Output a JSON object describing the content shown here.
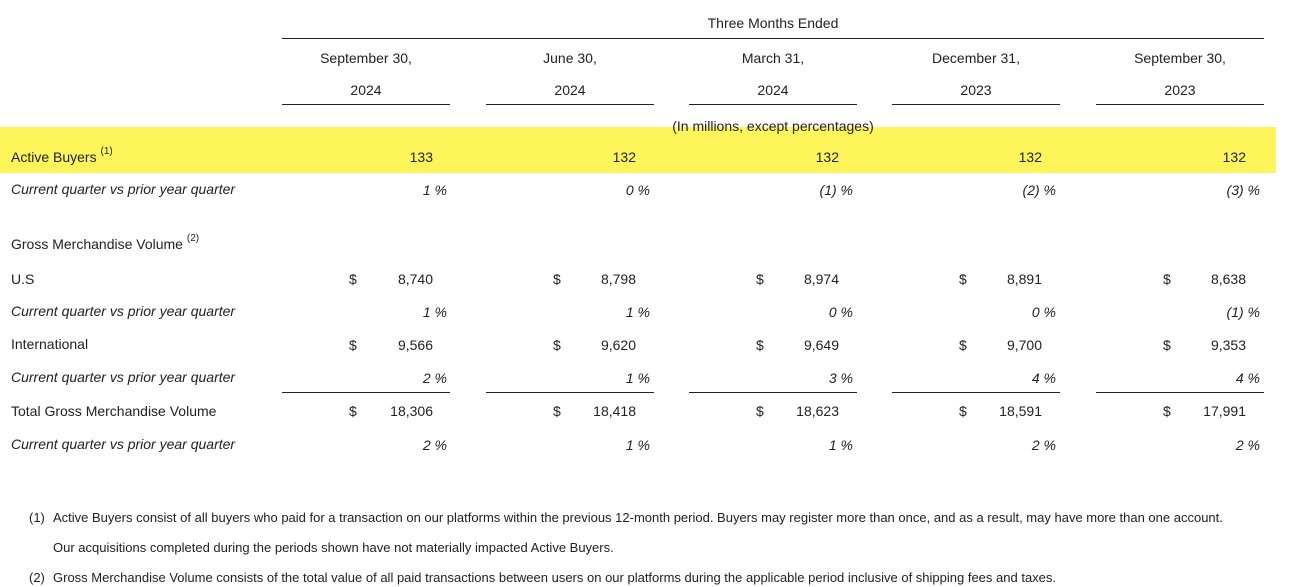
{
  "header": {
    "super": "Three Months Ended",
    "units": "(In millions, except percentages)",
    "columns": [
      {
        "month": "September 30,",
        "year": "2024"
      },
      {
        "month": "June 30,",
        "year": "2024"
      },
      {
        "month": "March 31,",
        "year": "2024"
      },
      {
        "month": "December 31,",
        "year": "2023"
      },
      {
        "month": "September 30,",
        "year": "2023"
      }
    ]
  },
  "rows": {
    "active_buyers": {
      "label": "Active Buyers",
      "note": "(1)",
      "values": [
        "133",
        "132",
        "132",
        "132",
        "132"
      ]
    },
    "active_buyers_change": {
      "label": "Current quarter vs prior year quarter",
      "values": [
        "1 %",
        "0 %",
        "(1) %",
        "(2) %",
        "(3) %"
      ]
    },
    "gmv_heading": {
      "label": "Gross Merchandise Volume",
      "note": "(2)"
    },
    "us": {
      "label": "U.S",
      "currency": "$",
      "values": [
        "8,740",
        "8,798",
        "8,974",
        "8,891",
        "8,638"
      ]
    },
    "us_change": {
      "label": "Current quarter vs prior year quarter",
      "values": [
        "1 %",
        "1 %",
        "0 %",
        "0 %",
        "(1) %"
      ]
    },
    "international": {
      "label": "International",
      "currency": "$",
      "values": [
        "9,566",
        "9,620",
        "9,649",
        "9,700",
        "9,353"
      ]
    },
    "international_change": {
      "label": "Current quarter vs prior year quarter",
      "values": [
        "2 %",
        "1 %",
        "3 %",
        "4 %",
        "4 %"
      ]
    },
    "total": {
      "label": "Total Gross Merchandise Volume",
      "currency": "$",
      "values": [
        "18,306",
        "18,418",
        "18,623",
        "18,591",
        "17,991"
      ]
    },
    "total_change": {
      "label": "Current quarter vs prior year quarter",
      "values": [
        "2 %",
        "1 %",
        "1 %",
        "2 %",
        "2 %"
      ]
    }
  },
  "footnotes": [
    {
      "marker": "(1)",
      "lines": [
        "Active Buyers consist of all buyers who paid for a transaction on our platforms within the previous 12-month period. Buyers may register more than once, and as a result, may have more than one account.",
        "Our acquisitions completed during the periods shown have not materially impacted Active Buyers."
      ]
    },
    {
      "marker": "(2)",
      "lines": [
        "Gross Merchandise Volume consists of the total value of all paid transactions between users on our platforms during the applicable period inclusive of shipping fees and taxes."
      ]
    }
  ],
  "highlight_color": "#fdf55a"
}
